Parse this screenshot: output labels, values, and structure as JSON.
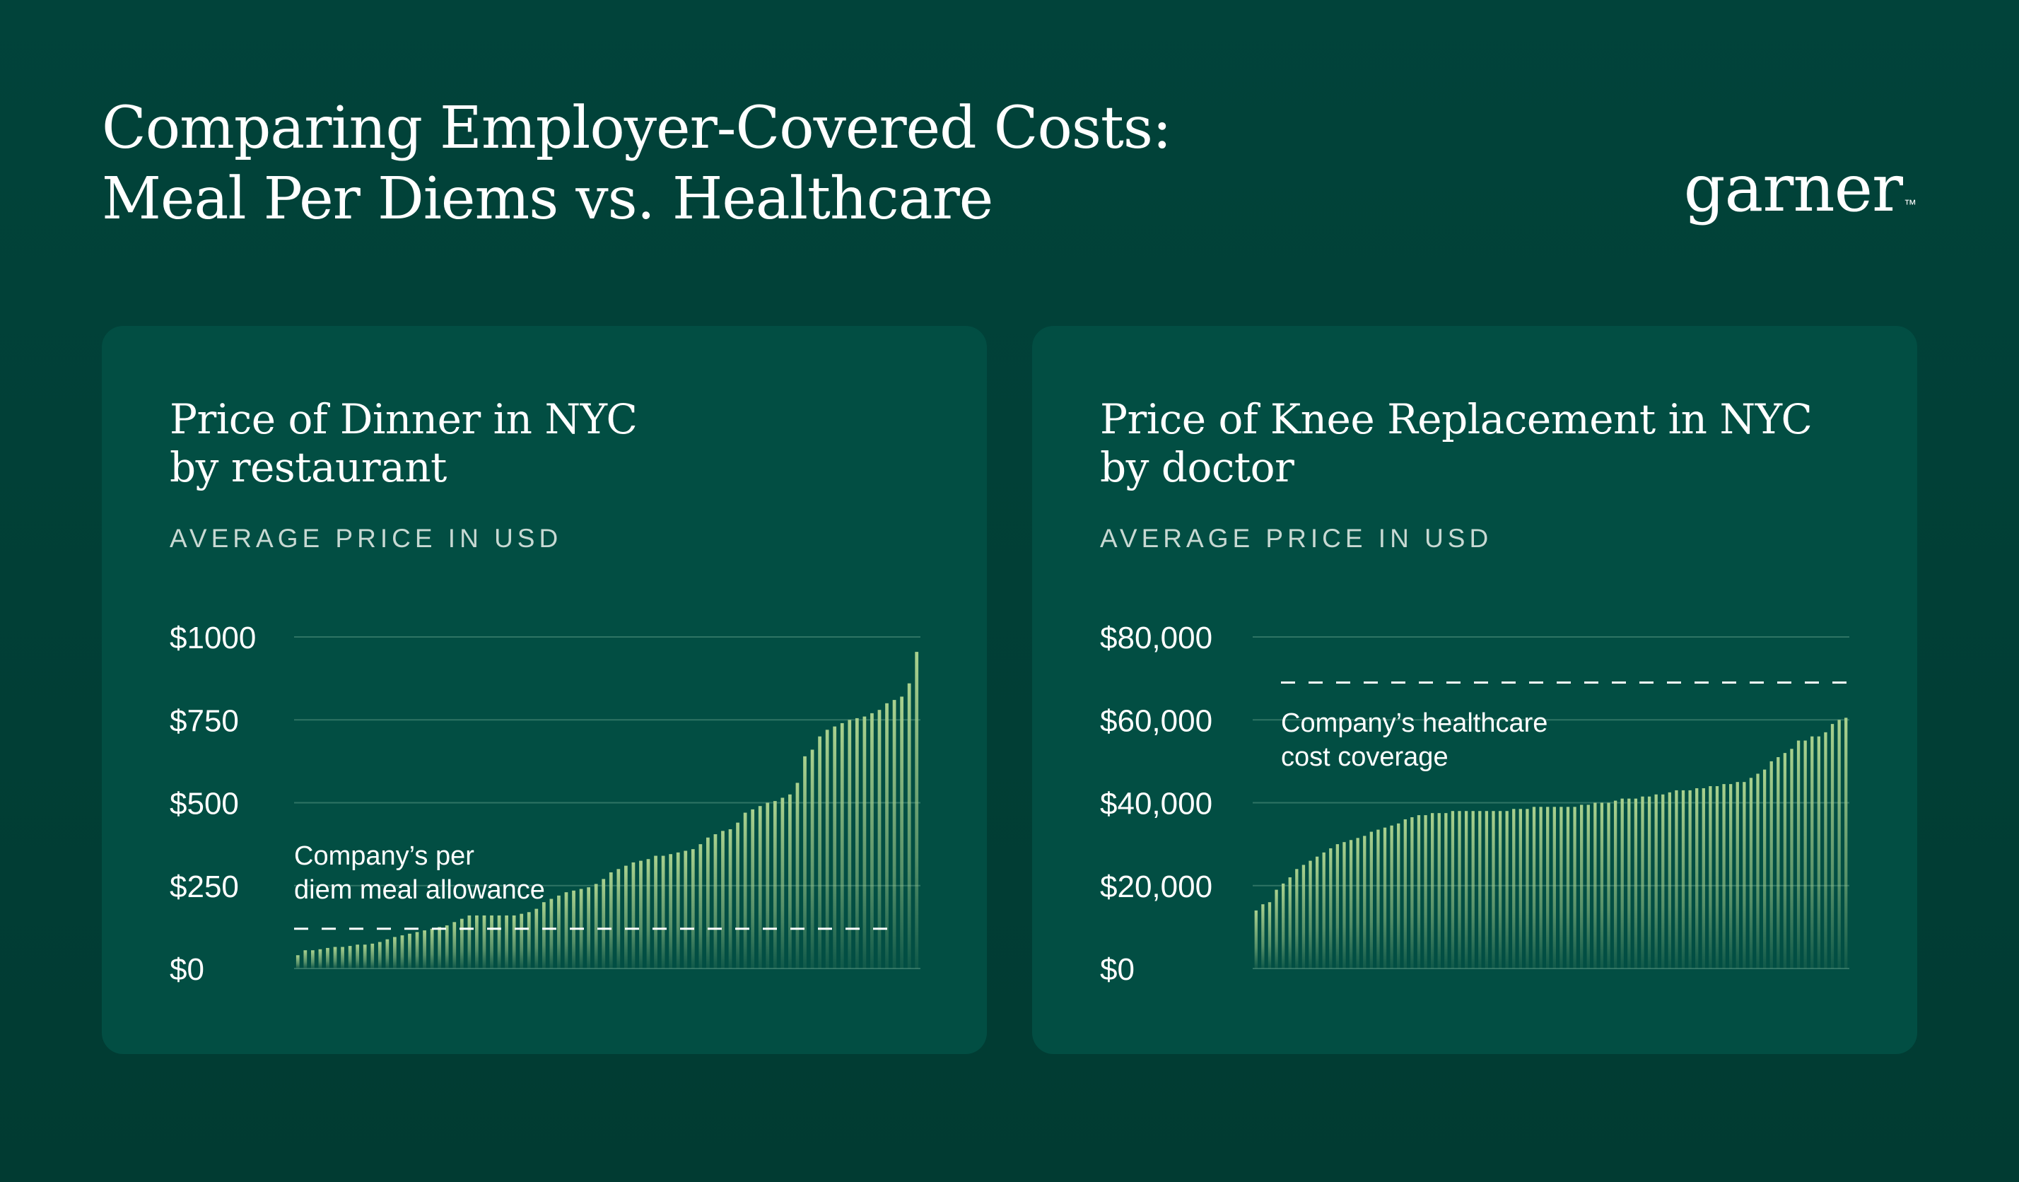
{
  "header": {
    "title_line1": "Comparing Employer-Covered Costs:",
    "title_line2": "Meal Per Diems vs. Healthcare",
    "brand": "garner",
    "brand_tm": "™"
  },
  "colors": {
    "background": "#013f36",
    "card": "#024e43",
    "bar": "#a9d18e",
    "gridline": "#2f7464",
    "dashed_line": "#ffffff",
    "subtitle": "#c8d9d3"
  },
  "chart_data": [
    {
      "type": "bar",
      "title_line1": "Price of Dinner in NYC",
      "title_line2": "by restaurant",
      "subtitle": "AVERAGE PRICE IN USD",
      "ylim": [
        0,
        1000
      ],
      "yticks": [
        0,
        250,
        500,
        750,
        1000
      ],
      "ytick_labels": [
        "$0",
        "$250",
        "$500",
        "$750",
        "$1000"
      ],
      "grid": true,
      "values": [
        40,
        55,
        55,
        58,
        62,
        65,
        65,
        68,
        72,
        72,
        75,
        80,
        88,
        95,
        100,
        105,
        110,
        115,
        120,
        125,
        130,
        140,
        150,
        160,
        160,
        160,
        160,
        160,
        160,
        160,
        165,
        170,
        180,
        200,
        210,
        220,
        230,
        235,
        240,
        245,
        255,
        270,
        290,
        300,
        310,
        320,
        325,
        330,
        340,
        340,
        345,
        350,
        355,
        360,
        375,
        395,
        405,
        415,
        420,
        440,
        470,
        480,
        490,
        500,
        505,
        515,
        525,
        560,
        640,
        660,
        700,
        720,
        730,
        740,
        750,
        755,
        760,
        770,
        780,
        800,
        810,
        820,
        860,
        955
      ],
      "reference_line": {
        "value": 120,
        "label_line1": "Company’s per",
        "label_line2": "diem meal allowance"
      }
    },
    {
      "type": "bar",
      "title_line1": "Price of Knee Replacement in NYC",
      "title_line2": "by doctor",
      "subtitle": "AVERAGE PRICE IN USD",
      "ylim": [
        0,
        80000
      ],
      "yticks": [
        0,
        20000,
        40000,
        60000,
        80000
      ],
      "ytick_labels": [
        "$0",
        "$20,000",
        "$40,000",
        "$60,000",
        "$80,000"
      ],
      "grid": true,
      "values": [
        14000,
        15500,
        16000,
        19000,
        20500,
        22000,
        24000,
        25000,
        26000,
        27000,
        28000,
        29000,
        30000,
        30500,
        31000,
        31500,
        32000,
        33000,
        33500,
        34000,
        34500,
        35000,
        36000,
        36500,
        37000,
        37000,
        37500,
        37500,
        37500,
        38000,
        38000,
        38000,
        38000,
        38000,
        38000,
        38000,
        38000,
        38000,
        38500,
        38500,
        38500,
        39000,
        39000,
        39000,
        39000,
        39000,
        39000,
        39000,
        39500,
        39500,
        40000,
        40000,
        40000,
        40500,
        41000,
        41000,
        41000,
        41500,
        41500,
        42000,
        42000,
        42500,
        43000,
        43000,
        43000,
        43500,
        43500,
        44000,
        44000,
        44500,
        44500,
        45000,
        45000,
        46000,
        47000,
        48000,
        50000,
        51000,
        52000,
        53000,
        55000,
        55000,
        56000,
        56000,
        57000,
        59000,
        60000,
        60500
      ],
      "reference_line": {
        "value": 69000,
        "label_line1": "Company’s healthcare",
        "label_line2": "cost coverage"
      }
    }
  ]
}
